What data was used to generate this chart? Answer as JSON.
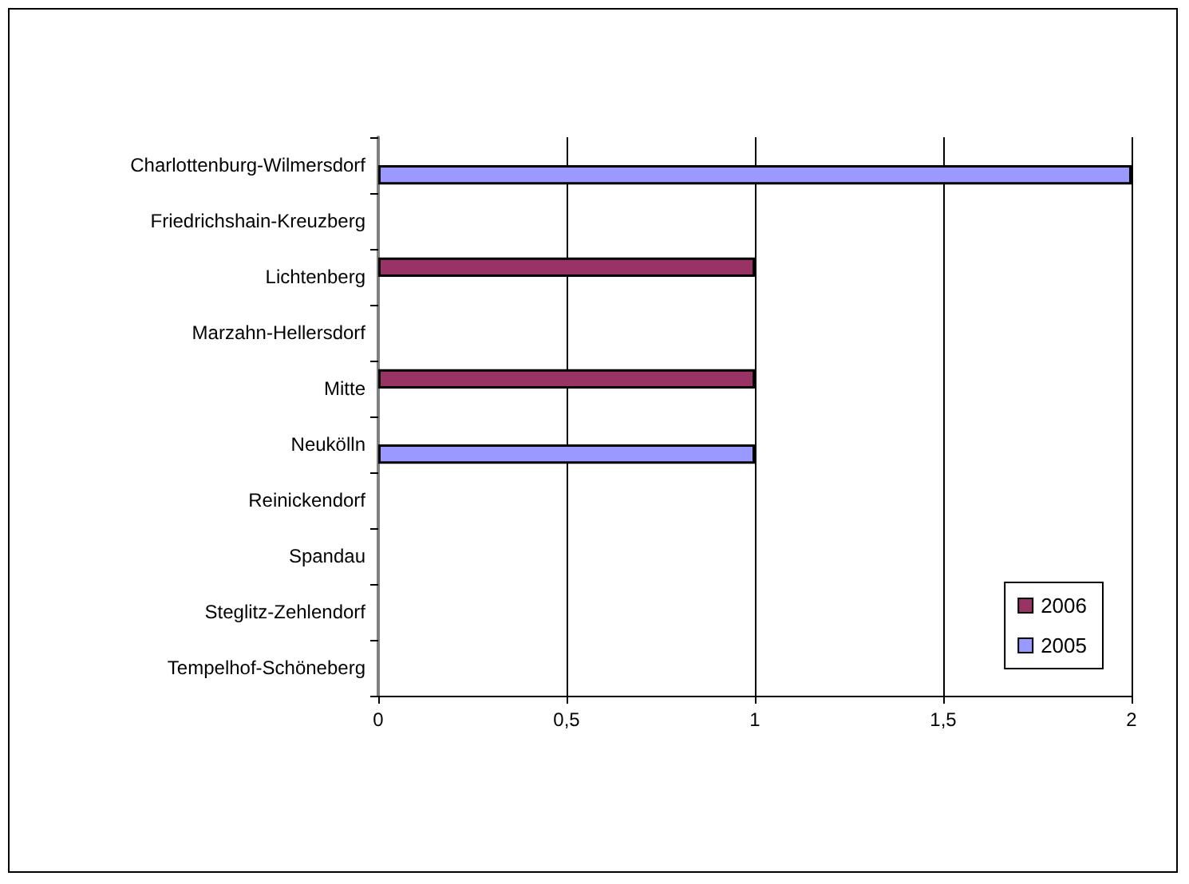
{
  "chart_data": {
    "type": "bar",
    "orientation": "horizontal",
    "categories": [
      "Charlottenburg-Wilmersdorf",
      "Friedrichshain-Kreuzberg",
      "Lichtenberg",
      "Marzahn-Hellersdorf",
      "Mitte",
      "Neukölln",
      "Reinickendorf",
      "Spandau",
      "Steglitz-Zehlendorf",
      "Tempelhof-Schöneberg"
    ],
    "series": [
      {
        "name": "2006",
        "color": "#993366",
        "values": [
          0,
          0,
          1,
          0,
          1,
          0,
          0,
          0,
          0,
          0
        ]
      },
      {
        "name": "2005",
        "color": "#9999ff",
        "values": [
          2,
          0,
          0,
          0,
          0,
          1,
          0,
          0,
          0,
          0
        ]
      }
    ],
    "xlim": [
      0,
      2
    ],
    "xticks": [
      0,
      {
        "value": 0.5,
        "label": "0,5"
      },
      1,
      {
        "value": 1.5,
        "label": "1,5"
      },
      2
    ],
    "grid": "x",
    "legend": "bottom right"
  }
}
